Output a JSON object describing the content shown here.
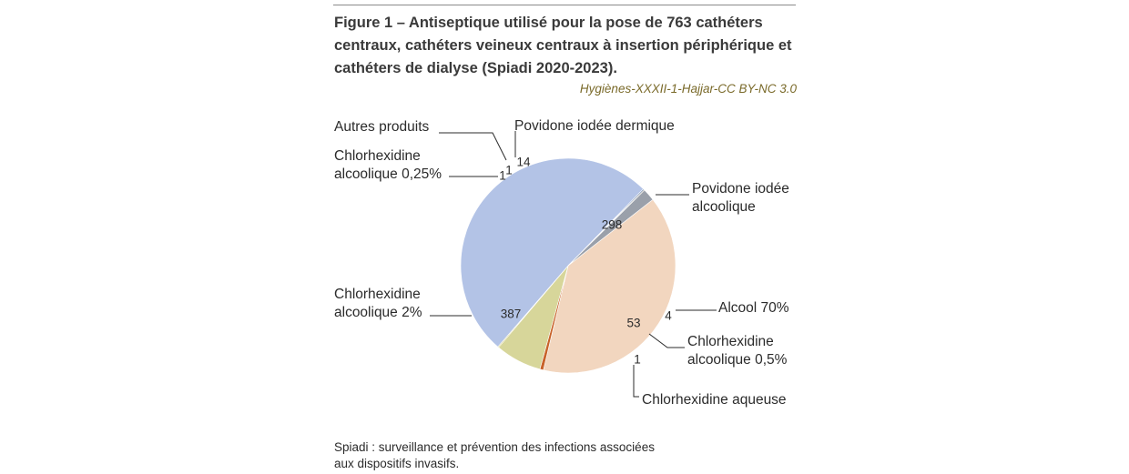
{
  "figure": {
    "title": "Figure 1 – Antiseptique utilisé pour la pose de 763 cathéters centraux, cathéters veineux centraux à insertion périphérique et cathéters de dialyse (Spiadi 2020-2023).",
    "credit": "Hygiènes-XXXII-1-Hajjar-CC BY-NC 3.0",
    "footnote_line1": "Spiadi : surveillance et prévention des infections associées",
    "footnote_line2": "aux dispositifs invasifs."
  },
  "chart_data": {
    "type": "pie",
    "title": "Figure 1 – Antiseptique utilisé pour la pose de 763 cathéters centraux, cathéters veineux centraux à insertion périphérique et cathéters de dialyse (Spiadi 2020-2023).",
    "slices": [
      {
        "label": "Povidone iodée alcoolique",
        "label_lines": [
          "Povidone iodée",
          "alcoolique"
        ],
        "value": 298,
        "color": "#f2d6bf"
      },
      {
        "label": "Alcool 70%",
        "label_lines": [
          "Alcool 70%"
        ],
        "value": 4,
        "color": "#c8632a"
      },
      {
        "label": "Chlorhexidine alcoolique 0,5%",
        "label_lines": [
          "Chlorhexidine",
          "alcoolique 0,5%"
        ],
        "value": 53,
        "color": "#d7d69a"
      },
      {
        "label": "Chlorhexidine aqueuse",
        "label_lines": [
          "Chlorhexidine aqueuse"
        ],
        "value": 1,
        "color": "#b8a832"
      },
      {
        "label": "Chlorhexidine alcoolique 2%",
        "label_lines": [
          "Chlorhexidine",
          "alcoolique 2%"
        ],
        "value": 387,
        "color": "#b3c3e6"
      },
      {
        "label": "Chlorhexidine alcoolique 0,25%",
        "label_lines": [
          "Chlorhexidine",
          "alcoolique 0,25%"
        ],
        "value": 1,
        "color": "#1f4e8c"
      },
      {
        "label": "Autres produits",
        "label_lines": [
          "Autres produits"
        ],
        "value": 1,
        "color": "#3a3a3a"
      },
      {
        "label": "Povidone iodée dermique",
        "label_lines": [
          "Povidone iodée dermique"
        ],
        "value": 14,
        "color": "#9aa0aa"
      }
    ]
  }
}
